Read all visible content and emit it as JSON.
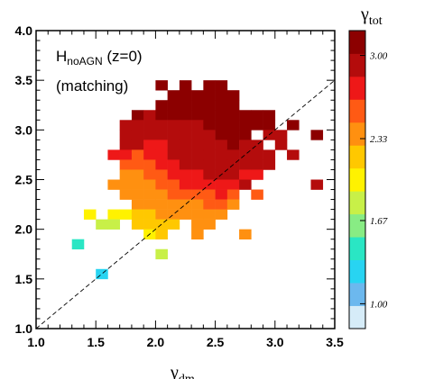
{
  "chart_data": {
    "type": "heatmap",
    "title": "",
    "xlabel": {
      "main": "γ",
      "sub": "dm"
    },
    "ylabel": "",
    "xlim": [
      1.0,
      3.5
    ],
    "ylim": [
      1.0,
      4.0
    ],
    "x_ticks": [
      "1.0",
      "1.5",
      "2.0",
      "2.5",
      "3.0",
      "3.5"
    ],
    "y_ticks": [
      "1.0",
      "1.5",
      "2.0",
      "2.5",
      "3.0",
      "3.5",
      "4.0"
    ],
    "annotations": [
      {
        "main": "H",
        "sub": "noAGN",
        "tail": " (z=0)"
      },
      {
        "text": "(matching)"
      }
    ],
    "reference_line": "one-to-one (dashed)",
    "colorbar": {
      "title": {
        "main": "γ",
        "sub": "tot"
      },
      "range": [
        0.8,
        3.2
      ],
      "tick_labels": [
        "1.00",
        "1.67",
        "2.33",
        "3.00"
      ],
      "tick_values": [
        1.0,
        1.67,
        2.33,
        3.0
      ],
      "colors": [
        "#d6ecf8",
        "#6cb8ee",
        "#28d4f2",
        "#2ae6c4",
        "#88ec84",
        "#c8f048",
        "#fff200",
        "#ffc800",
        "#ff9010",
        "#ff5a14",
        "#ee1818",
        "#b40c0c",
        "#8c0000"
      ]
    },
    "bin_size": [
      0.1,
      0.1
    ],
    "cells": [
      {
        "x": 2.05,
        "y": 3.45,
        "v": 3.15
      },
      {
        "x": 2.25,
        "y": 3.45,
        "v": 3.15
      },
      {
        "x": 2.45,
        "y": 3.45,
        "v": 3.15
      },
      {
        "x": 2.55,
        "y": 3.45,
        "v": 3.15
      },
      {
        "x": 2.15,
        "y": 3.35,
        "v": 3.1
      },
      {
        "x": 2.25,
        "y": 3.35,
        "v": 3.1
      },
      {
        "x": 2.35,
        "y": 3.35,
        "v": 3.1
      },
      {
        "x": 2.45,
        "y": 3.35,
        "v": 3.1
      },
      {
        "x": 2.55,
        "y": 3.35,
        "v": 3.1
      },
      {
        "x": 2.65,
        "y": 3.35,
        "v": 3.1
      },
      {
        "x": 2.05,
        "y": 3.25,
        "v": 3.15
      },
      {
        "x": 2.15,
        "y": 3.25,
        "v": 3.1
      },
      {
        "x": 2.25,
        "y": 3.25,
        "v": 3.1
      },
      {
        "x": 2.35,
        "y": 3.25,
        "v": 3.1
      },
      {
        "x": 2.45,
        "y": 3.25,
        "v": 3.1
      },
      {
        "x": 2.55,
        "y": 3.25,
        "v": 3.1
      },
      {
        "x": 2.65,
        "y": 3.25,
        "v": 3.1
      },
      {
        "x": 1.85,
        "y": 3.15,
        "v": 3.1
      },
      {
        "x": 1.95,
        "y": 3.15,
        "v": 2.95
      },
      {
        "x": 2.05,
        "y": 3.15,
        "v": 3.1
      },
      {
        "x": 2.15,
        "y": 3.15,
        "v": 3.1
      },
      {
        "x": 2.25,
        "y": 3.15,
        "v": 3.1
      },
      {
        "x": 2.35,
        "y": 3.15,
        "v": 3.1
      },
      {
        "x": 2.45,
        "y": 3.15,
        "v": 3.1
      },
      {
        "x": 2.55,
        "y": 3.15,
        "v": 3.1
      },
      {
        "x": 2.65,
        "y": 3.15,
        "v": 3.1
      },
      {
        "x": 2.75,
        "y": 3.15,
        "v": 3.15
      },
      {
        "x": 2.85,
        "y": 3.15,
        "v": 3.15
      },
      {
        "x": 2.95,
        "y": 3.15,
        "v": 3.15
      },
      {
        "x": 1.75,
        "y": 3.05,
        "v": 2.95
      },
      {
        "x": 1.85,
        "y": 3.05,
        "v": 2.95
      },
      {
        "x": 1.95,
        "y": 3.05,
        "v": 2.85
      },
      {
        "x": 2.05,
        "y": 3.05,
        "v": 2.95
      },
      {
        "x": 2.15,
        "y": 3.05,
        "v": 2.95
      },
      {
        "x": 2.25,
        "y": 3.05,
        "v": 2.95
      },
      {
        "x": 2.35,
        "y": 3.05,
        "v": 2.95
      },
      {
        "x": 2.45,
        "y": 3.05,
        "v": 3.1
      },
      {
        "x": 2.55,
        "y": 3.05,
        "v": 3.1
      },
      {
        "x": 2.65,
        "y": 3.05,
        "v": 3.1
      },
      {
        "x": 2.75,
        "y": 3.05,
        "v": 3.1
      },
      {
        "x": 2.85,
        "y": 3.05,
        "v": 3.15
      },
      {
        "x": 2.95,
        "y": 3.05,
        "v": 3.15
      },
      {
        "x": 3.15,
        "y": 3.05,
        "v": 3.15
      },
      {
        "x": 1.75,
        "y": 2.95,
        "v": 2.95
      },
      {
        "x": 1.85,
        "y": 2.95,
        "v": 2.85
      },
      {
        "x": 1.95,
        "y": 2.95,
        "v": 2.85
      },
      {
        "x": 2.05,
        "y": 2.95,
        "v": 2.85
      },
      {
        "x": 2.15,
        "y": 2.95,
        "v": 2.95
      },
      {
        "x": 2.25,
        "y": 2.95,
        "v": 2.95
      },
      {
        "x": 2.35,
        "y": 2.95,
        "v": 2.95
      },
      {
        "x": 2.45,
        "y": 2.95,
        "v": 2.95
      },
      {
        "x": 2.55,
        "y": 2.95,
        "v": 3.1
      },
      {
        "x": 2.65,
        "y": 2.95,
        "v": 3.1
      },
      {
        "x": 2.75,
        "y": 2.95,
        "v": 3.1
      },
      {
        "x": 2.95,
        "y": 2.95,
        "v": 2.95
      },
      {
        "x": 3.05,
        "y": 2.95,
        "v": 2.95
      },
      {
        "x": 3.35,
        "y": 2.95,
        "v": 3.15
      },
      {
        "x": 1.75,
        "y": 2.85,
        "v": 2.85
      },
      {
        "x": 1.85,
        "y": 2.85,
        "v": 2.85
      },
      {
        "x": 1.95,
        "y": 2.85,
        "v": 2.75
      },
      {
        "x": 2.05,
        "y": 2.85,
        "v": 2.75
      },
      {
        "x": 2.15,
        "y": 2.85,
        "v": 2.85
      },
      {
        "x": 2.25,
        "y": 2.85,
        "v": 2.95
      },
      {
        "x": 2.35,
        "y": 2.85,
        "v": 2.95
      },
      {
        "x": 2.45,
        "y": 2.85,
        "v": 2.95
      },
      {
        "x": 2.55,
        "y": 2.85,
        "v": 2.95
      },
      {
        "x": 2.65,
        "y": 2.85,
        "v": 3.1
      },
      {
        "x": 2.75,
        "y": 2.85,
        "v": 2.95
      },
      {
        "x": 2.85,
        "y": 2.85,
        "v": 2.95
      },
      {
        "x": 3.05,
        "y": 2.85,
        "v": 2.85
      },
      {
        "x": 1.65,
        "y": 2.75,
        "v": 2.75
      },
      {
        "x": 1.75,
        "y": 2.75,
        "v": 2.75
      },
      {
        "x": 1.85,
        "y": 2.75,
        "v": 2.55
      },
      {
        "x": 1.95,
        "y": 2.75,
        "v": 2.75
      },
      {
        "x": 2.05,
        "y": 2.75,
        "v": 2.75
      },
      {
        "x": 2.15,
        "y": 2.75,
        "v": 2.85
      },
      {
        "x": 2.25,
        "y": 2.75,
        "v": 2.85
      },
      {
        "x": 2.35,
        "y": 2.75,
        "v": 2.85
      },
      {
        "x": 2.45,
        "y": 2.75,
        "v": 2.95
      },
      {
        "x": 2.55,
        "y": 2.75,
        "v": 2.95
      },
      {
        "x": 2.65,
        "y": 2.75,
        "v": 2.95
      },
      {
        "x": 2.75,
        "y": 2.75,
        "v": 2.95
      },
      {
        "x": 2.85,
        "y": 2.75,
        "v": 2.85
      },
      {
        "x": 2.95,
        "y": 2.75,
        "v": 2.85
      },
      {
        "x": 3.15,
        "y": 2.75,
        "v": 2.85
      },
      {
        "x": 1.75,
        "y": 2.65,
        "v": 2.55
      },
      {
        "x": 1.85,
        "y": 2.65,
        "v": 2.55
      },
      {
        "x": 1.95,
        "y": 2.65,
        "v": 2.55
      },
      {
        "x": 2.05,
        "y": 2.65,
        "v": 2.75
      },
      {
        "x": 2.15,
        "y": 2.65,
        "v": 2.75
      },
      {
        "x": 2.25,
        "y": 2.65,
        "v": 2.85
      },
      {
        "x": 2.35,
        "y": 2.65,
        "v": 2.85
      },
      {
        "x": 2.45,
        "y": 2.65,
        "v": 2.85
      },
      {
        "x": 2.55,
        "y": 2.65,
        "v": 2.85
      },
      {
        "x": 2.65,
        "y": 2.65,
        "v": 2.95
      },
      {
        "x": 2.75,
        "y": 2.65,
        "v": 2.85
      },
      {
        "x": 2.85,
        "y": 2.65,
        "v": 2.85
      },
      {
        "x": 2.95,
        "y": 2.65,
        "v": 2.85
      },
      {
        "x": 1.75,
        "y": 2.55,
        "v": 2.45
      },
      {
        "x": 1.85,
        "y": 2.55,
        "v": 2.45
      },
      {
        "x": 1.95,
        "y": 2.55,
        "v": 2.55
      },
      {
        "x": 2.05,
        "y": 2.55,
        "v": 2.55
      },
      {
        "x": 2.15,
        "y": 2.55,
        "v": 2.75
      },
      {
        "x": 2.25,
        "y": 2.55,
        "v": 2.75
      },
      {
        "x": 2.35,
        "y": 2.55,
        "v": 2.75
      },
      {
        "x": 2.45,
        "y": 2.55,
        "v": 2.85
      },
      {
        "x": 2.55,
        "y": 2.55,
        "v": 2.85
      },
      {
        "x": 2.65,
        "y": 2.55,
        "v": 2.85
      },
      {
        "x": 2.75,
        "y": 2.55,
        "v": 2.75
      },
      {
        "x": 2.85,
        "y": 2.55,
        "v": 2.75
      },
      {
        "x": 1.65,
        "y": 2.45,
        "v": 2.3
      },
      {
        "x": 1.75,
        "y": 2.45,
        "v": 2.45
      },
      {
        "x": 1.85,
        "y": 2.45,
        "v": 2.45
      },
      {
        "x": 1.95,
        "y": 2.45,
        "v": 2.45
      },
      {
        "x": 2.05,
        "y": 2.45,
        "v": 2.55
      },
      {
        "x": 2.15,
        "y": 2.45,
        "v": 2.55
      },
      {
        "x": 2.25,
        "y": 2.45,
        "v": 2.75
      },
      {
        "x": 2.35,
        "y": 2.45,
        "v": 2.75
      },
      {
        "x": 2.45,
        "y": 2.45,
        "v": 2.75
      },
      {
        "x": 2.55,
        "y": 2.45,
        "v": 2.75
      },
      {
        "x": 2.65,
        "y": 2.45,
        "v": 2.75
      },
      {
        "x": 2.75,
        "y": 2.45,
        "v": 2.85
      },
      {
        "x": 3.35,
        "y": 2.45,
        "v": 3.0
      },
      {
        "x": 1.75,
        "y": 2.35,
        "v": 2.3
      },
      {
        "x": 1.85,
        "y": 2.35,
        "v": 2.3
      },
      {
        "x": 1.95,
        "y": 2.35,
        "v": 2.45
      },
      {
        "x": 2.05,
        "y": 2.35,
        "v": 2.45
      },
      {
        "x": 2.15,
        "y": 2.35,
        "v": 2.55
      },
      {
        "x": 2.25,
        "y": 2.35,
        "v": 2.55
      },
      {
        "x": 2.35,
        "y": 2.35,
        "v": 2.55
      },
      {
        "x": 2.45,
        "y": 2.35,
        "v": 2.55
      },
      {
        "x": 2.55,
        "y": 2.35,
        "v": 2.75
      },
      {
        "x": 2.65,
        "y": 2.35,
        "v": 2.55
      },
      {
        "x": 2.85,
        "y": 2.35,
        "v": 2.55
      },
      {
        "x": 1.85,
        "y": 2.25,
        "v": 2.3
      },
      {
        "x": 1.95,
        "y": 2.25,
        "v": 2.3
      },
      {
        "x": 2.05,
        "y": 2.25,
        "v": 2.3
      },
      {
        "x": 2.15,
        "y": 2.25,
        "v": 2.45
      },
      {
        "x": 2.25,
        "y": 2.25,
        "v": 2.45
      },
      {
        "x": 2.35,
        "y": 2.25,
        "v": 2.45
      },
      {
        "x": 2.45,
        "y": 2.25,
        "v": 2.55
      },
      {
        "x": 2.55,
        "y": 2.25,
        "v": 2.55
      },
      {
        "x": 2.65,
        "y": 2.25,
        "v": 2.45
      },
      {
        "x": 1.45,
        "y": 2.15,
        "v": 1.95
      },
      {
        "x": 1.65,
        "y": 2.15,
        "v": 1.95
      },
      {
        "x": 1.75,
        "y": 2.15,
        "v": 1.95
      },
      {
        "x": 1.85,
        "y": 2.15,
        "v": 2.2
      },
      {
        "x": 1.95,
        "y": 2.15,
        "v": 2.2
      },
      {
        "x": 2.05,
        "y": 2.15,
        "v": 2.3
      },
      {
        "x": 2.15,
        "y": 2.15,
        "v": 2.3
      },
      {
        "x": 2.25,
        "y": 2.15,
        "v": 2.3
      },
      {
        "x": 2.35,
        "y": 2.15,
        "v": 2.45
      },
      {
        "x": 2.45,
        "y": 2.15,
        "v": 2.45
      },
      {
        "x": 2.55,
        "y": 2.15,
        "v": 2.45
      },
      {
        "x": 1.55,
        "y": 2.05,
        "v": 1.8
      },
      {
        "x": 1.65,
        "y": 2.05,
        "v": 1.8
      },
      {
        "x": 1.85,
        "y": 2.05,
        "v": 2.2
      },
      {
        "x": 1.95,
        "y": 2.05,
        "v": 2.2
      },
      {
        "x": 2.05,
        "y": 2.05,
        "v": 2.2
      },
      {
        "x": 2.15,
        "y": 2.05,
        "v": 2.2
      },
      {
        "x": 2.35,
        "y": 2.05,
        "v": 2.3
      },
      {
        "x": 2.45,
        "y": 2.05,
        "v": 2.3
      },
      {
        "x": 1.95,
        "y": 1.95,
        "v": 2.0
      },
      {
        "x": 2.05,
        "y": 1.95,
        "v": 2.2
      },
      {
        "x": 2.35,
        "y": 1.95,
        "v": 2.3
      },
      {
        "x": 2.75,
        "y": 1.95,
        "v": 2.3
      },
      {
        "x": 1.35,
        "y": 1.85,
        "v": 1.5
      },
      {
        "x": 2.05,
        "y": 1.75,
        "v": 1.8
      },
      {
        "x": 1.55,
        "y": 1.55,
        "v": 1.3
      }
    ]
  }
}
